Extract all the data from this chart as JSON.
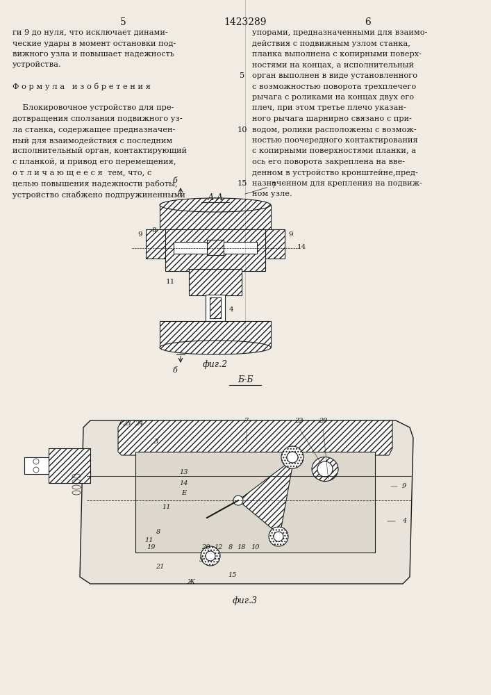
{
  "page_num_left": "5",
  "page_num_center": "1423289",
  "page_num_right": "6",
  "bg_color": "#f0ece4",
  "text_color": "#1a1a1a",
  "left_column_text": [
    "ги 9 до нуля, что исключает динами-",
    "ческие удары в момент остановки под-",
    "вижного узла и повышает надежность",
    "устройства.",
    "",
    "Ф о р м у л а   и з о б р е т е н и я",
    "",
    "    Блокировочное устройство для пре-",
    "дотвращения сползания подвижного уз-",
    "ла станка, содержащее предназначен-",
    "ный для взаимодействия с последним",
    "исполнительный орган, контактирующий",
    "с планкой, и привод его перемещения,",
    "о т л и ч а ю щ е е с я  тем, что, с",
    "целью повышения надежности работы,",
    "устройство снабжено подпружиненными"
  ],
  "right_column_text": [
    "упорами, предназначенными для взаимо-",
    "действия с подвижным узлом станка,",
    "планка выполнена с копирными поверх-",
    "ностями на концах, а исполнительный",
    "орган выполнен в виде установленного",
    "с возможностью поворота трехплечего",
    "рычага с роликами на концах двух его",
    "плеч, при этом третье плечо указан-",
    "ного рычага шарнирно связано с при-",
    "водом, ролики расположены с возмож-",
    "ностью поочередного контактирования",
    "с копирными поверхностями планки, а",
    "ось его поворота закреплена на вве-",
    "денном в устройство кронштейне,пред-",
    "назначенном для крепления на подвиж-",
    "ном узле."
  ],
  "fig2_label": "фиг.2",
  "fig3_label": "фиг.3",
  "section_aa_label": "А-А",
  "section_bb_label": "Б-Б",
  "line_number_5": "5",
  "line_number_10": "10",
  "line_number_15": "15"
}
